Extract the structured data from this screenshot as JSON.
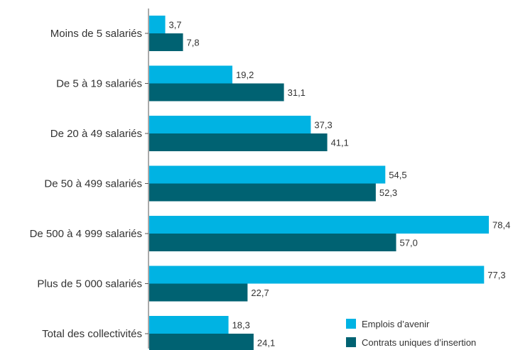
{
  "chart_data": {
    "type": "bar",
    "orientation": "horizontal",
    "categories": [
      "Moins de 5 salariés",
      "De 5 à 19 salariés",
      "De 20 à 49 salariés",
      "De 50 à 499 salariés",
      "De 500 à 4 999 salariés",
      "Plus de 5 000 salariés",
      "Total des collectivités"
    ],
    "series": [
      {
        "name": "Emplois d’avenir",
        "color": "#00b3e3",
        "values": [
          3.7,
          19.2,
          37.3,
          54.5,
          78.4,
          77.3,
          18.3
        ],
        "labels": [
          "3,7",
          "19,2",
          "37,3",
          "54,5",
          "78,4",
          "77,3",
          "18,3"
        ]
      },
      {
        "name": "Contrats uniques d’insertion",
        "color": "#006272",
        "values": [
          7.8,
          31.1,
          41.1,
          52.3,
          57.0,
          22.7,
          24.1
        ],
        "labels": [
          "7,8",
          "31,1",
          "41,1",
          "52,3",
          "57,0",
          "22,7",
          "24,1"
        ]
      }
    ],
    "xlim": [
      0,
      80
    ],
    "grid": false,
    "legend_position": "bottom-right"
  }
}
